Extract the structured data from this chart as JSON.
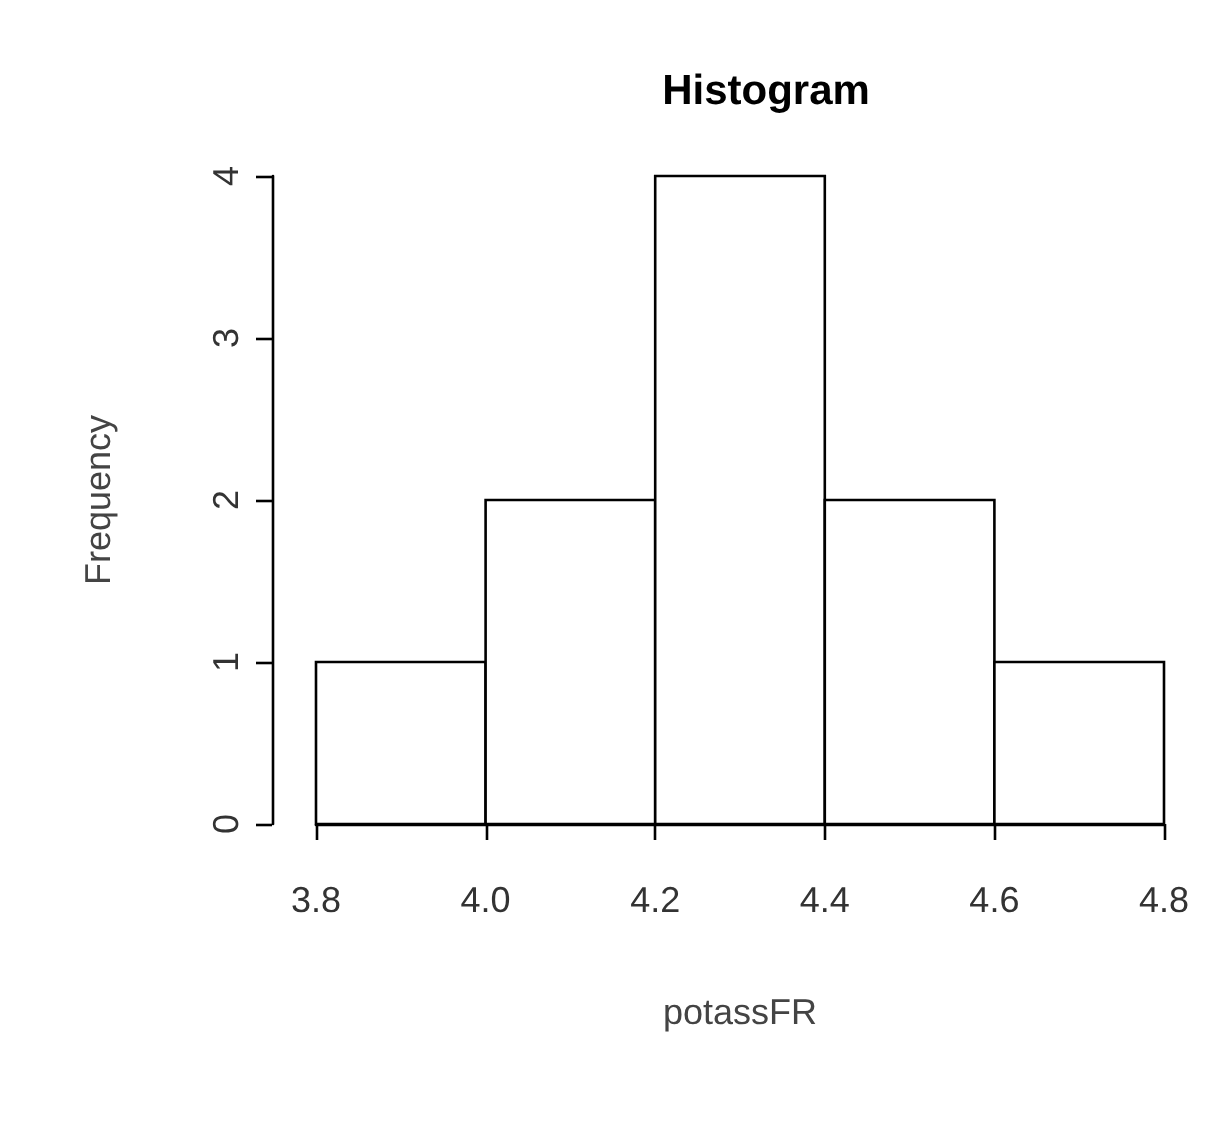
{
  "chart_data": {
    "type": "histogram",
    "title": "Histogram",
    "xlabel": "potassFR",
    "ylabel": "Frequency",
    "bins": [
      3.8,
      4.0,
      4.2,
      4.4,
      4.6,
      4.8
    ],
    "values": [
      1,
      2,
      4,
      2,
      1
    ],
    "color": "#ffffff",
    "xlim": [
      3.8,
      4.8
    ],
    "xticks": [
      3.8,
      {
        "value": 4,
        "label": "4.0"
      },
      4.2,
      4.4,
      4.6,
      4.8
    ],
    "ylim": [
      0,
      4
    ],
    "yticks": [
      0,
      1,
      2,
      3,
      4
    ],
    "grid": false
  }
}
